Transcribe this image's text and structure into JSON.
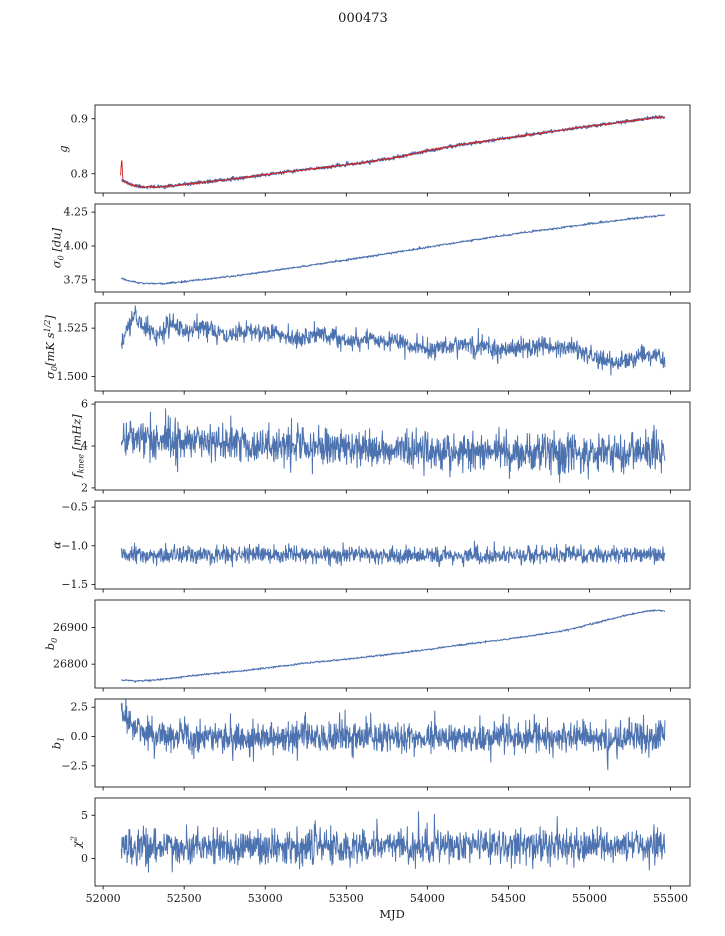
{
  "title": "000473",
  "chart_data": {
    "type": "line",
    "title": "000473",
    "xlabel": "MJD",
    "legend": "none",
    "grid": false,
    "xlim": [
      51950,
      55620
    ],
    "xticks": [
      52000,
      52500,
      53000,
      53500,
      54000,
      54500,
      55000,
      55500
    ],
    "xtick_labels": [
      "52000",
      "52500",
      "53000",
      "53500",
      "54000",
      "54500",
      "55000",
      "55500"
    ],
    "colors": {
      "data_line": "#4c72b0",
      "fit_line": "#cc2222",
      "axis": "#000000"
    },
    "panels": [
      {
        "id": "g",
        "ylabel": "g",
        "ylim": [
          0.765,
          0.925
        ],
        "yticks": [
          {
            "v": 0.8,
            "label": "0.8"
          },
          {
            "v": 0.9,
            "label": "0.9"
          }
        ],
        "series": [
          {
            "name": "g-data",
            "color": "#4c72b0",
            "width": 1.3,
            "n": 1300,
            "seed": 11,
            "noise": 0.0015,
            "trend": [
              [
                52112,
                0.7905
              ],
              [
                52160,
                0.7815
              ],
              [
                52230,
                0.7762
              ],
              [
                52330,
                0.7758
              ],
              [
                52450,
                0.7788
              ],
              [
                52600,
                0.7838
              ],
              [
                52800,
                0.7905
              ],
              [
                53000,
                0.7982
              ],
              [
                53200,
                0.8058
              ],
              [
                53400,
                0.8128
              ],
              [
                53600,
                0.82
              ],
              [
                53800,
                0.829
              ],
              [
                54000,
                0.8418
              ],
              [
                54200,
                0.8525
              ],
              [
                54400,
                0.8612
              ],
              [
                54600,
                0.8698
              ],
              [
                54800,
                0.8782
              ],
              [
                55000,
                0.8865
              ],
              [
                55150,
                0.8922
              ],
              [
                55300,
                0.8982
              ],
              [
                55420,
                0.9028
              ],
              [
                55465,
                0.9022
              ]
            ]
          },
          {
            "name": "g-fit",
            "color": "#cc2222",
            "width": 0.9,
            "n": 1300,
            "seed": 12,
            "noise": 0.0008,
            "trend": [
              [
                52108,
                0.796
              ],
              [
                52115,
                0.829
              ],
              [
                52122,
                0.7865
              ],
              [
                52160,
                0.7812
              ],
              [
                52230,
                0.7762
              ],
              [
                52330,
                0.7758
              ],
              [
                52450,
                0.7788
              ],
              [
                52600,
                0.7838
              ],
              [
                52800,
                0.7905
              ],
              [
                53000,
                0.7982
              ],
              [
                53200,
                0.8058
              ],
              [
                53400,
                0.8128
              ],
              [
                53600,
                0.82
              ],
              [
                53800,
                0.829
              ],
              [
                54000,
                0.8418
              ],
              [
                54200,
                0.8525
              ],
              [
                54400,
                0.8612
              ],
              [
                54600,
                0.8698
              ],
              [
                54800,
                0.8782
              ],
              [
                55000,
                0.8865
              ],
              [
                55150,
                0.8922
              ],
              [
                55300,
                0.8982
              ],
              [
                55420,
                0.9028
              ],
              [
                55465,
                0.9022
              ]
            ]
          }
        ]
      },
      {
        "id": "sigma0-du",
        "ylabel": "σ_{0} [du]",
        "ylim": [
          3.66,
          4.31
        ],
        "yticks": [
          {
            "v": 3.75,
            "label": "3.75"
          },
          {
            "v": 4.0,
            "label": "4.00"
          },
          {
            "v": 4.25,
            "label": "4.25"
          }
        ],
        "series": [
          {
            "name": "sigma0-du",
            "color": "#4c72b0",
            "width": 1.0,
            "n": 1300,
            "seed": 21,
            "noise": 0.0035,
            "trend": [
              [
                52112,
                3.763
              ],
              [
                52170,
                3.737
              ],
              [
                52260,
                3.723
              ],
              [
                52380,
                3.722
              ],
              [
                52500,
                3.737
              ],
              [
                52650,
                3.757
              ],
              [
                52850,
                3.785
              ],
              [
                53050,
                3.818
              ],
              [
                53250,
                3.852
              ],
              [
                53450,
                3.888
              ],
              [
                53650,
                3.925
              ],
              [
                53850,
                3.962
              ],
              [
                54050,
                4.0
              ],
              [
                54250,
                4.038
              ],
              [
                54450,
                4.073
              ],
              [
                54650,
                4.108
              ],
              [
                54850,
                4.14
              ],
              [
                55050,
                4.17
              ],
              [
                55250,
                4.2
              ],
              [
                55400,
                4.22
              ],
              [
                55465,
                4.228
              ]
            ]
          }
        ]
      },
      {
        "id": "sigma0-mks",
        "ylabel": "σ_{0}[mK s^{1/2}]",
        "ylim": [
          1.4925,
          1.538
        ],
        "yticks": [
          {
            "v": 1.5,
            "label": "1.500"
          },
          {
            "v": 1.525,
            "label": "1.525"
          }
        ],
        "series": [
          {
            "name": "sigma0-mks",
            "color": "#4c72b0",
            "width": 1.0,
            "n": 1400,
            "seed": 31,
            "noise": 0.0025,
            "trend": [
              [
                52112,
                1.515
              ],
              [
                52150,
                1.5255
              ],
              [
                52200,
                1.532
              ],
              [
                52260,
                1.525
              ],
              [
                52330,
                1.521
              ],
              [
                52420,
                1.5268
              ],
              [
                52520,
                1.523
              ],
              [
                52640,
                1.5262
              ],
              [
                52760,
                1.52
              ],
              [
                52900,
                1.5242
              ],
              [
                53050,
                1.5228
              ],
              [
                53200,
                1.5196
              ],
              [
                53350,
                1.5222
              ],
              [
                53500,
                1.518
              ],
              [
                53680,
                1.52
              ],
              [
                53850,
                1.517
              ],
              [
                54000,
                1.514
              ],
              [
                54180,
                1.5165
              ],
              [
                54350,
                1.5148
              ],
              [
                54520,
                1.5138
              ],
              [
                54700,
                1.5158
              ],
              [
                54880,
                1.5145
              ],
              [
                55020,
                1.5112
              ],
              [
                55140,
                1.5058
              ],
              [
                55250,
                1.5098
              ],
              [
                55360,
                1.5118
              ],
              [
                55465,
                1.5072
              ]
            ]
          }
        ]
      },
      {
        "id": "fknee",
        "ylabel": "f_{knee} [mHz]",
        "ylim": [
          1.9,
          6.1
        ],
        "yticks": [
          {
            "v": 2,
            "label": "2"
          },
          {
            "v": 4,
            "label": "4"
          },
          {
            "v": 6,
            "label": "6"
          }
        ],
        "series": [
          {
            "name": "fknee",
            "color": "#4c72b0",
            "width": 1.0,
            "n": 1400,
            "seed": 41,
            "noise": 0.45,
            "trend": [
              [
                52112,
                4.45
              ],
              [
                52350,
                4.32
              ],
              [
                52700,
                4.18
              ],
              [
                53100,
                4.02
              ],
              [
                53500,
                3.9
              ],
              [
                53900,
                3.82
              ],
              [
                54300,
                3.75
              ],
              [
                54700,
                3.68
              ],
              [
                55050,
                3.62
              ],
              [
                55300,
                3.68
              ],
              [
                55465,
                3.72
              ]
            ]
          }
        ]
      },
      {
        "id": "alpha",
        "ylabel": "α",
        "ylim": [
          -1.56,
          -0.42
        ],
        "yticks": [
          {
            "v": -0.5,
            "label": "−0.5"
          },
          {
            "v": -1.0,
            "label": "−1.0"
          },
          {
            "v": -1.5,
            "label": "−1.5"
          }
        ],
        "series": [
          {
            "name": "alpha",
            "color": "#4c72b0",
            "width": 1.0,
            "n": 1400,
            "seed": 51,
            "noise": 0.055,
            "trend": [
              [
                52112,
                -1.128
              ],
              [
                53200,
                -1.12
              ],
              [
                54200,
                -1.126
              ],
              [
                55465,
                -1.118
              ]
            ]
          }
        ]
      },
      {
        "id": "b0",
        "ylabel": "b_{0}",
        "ylim": [
          26735,
          26975
        ],
        "yticks": [
          {
            "v": 26800,
            "label": "26800"
          },
          {
            "v": 26900,
            "label": "26900"
          }
        ],
        "series": [
          {
            "name": "b0",
            "color": "#4c72b0",
            "width": 1.0,
            "n": 1300,
            "seed": 61,
            "noise": 1.2,
            "trend": [
              [
                52112,
                26757
              ],
              [
                52200,
                26754
              ],
              [
                52330,
                26757
              ],
              [
                52480,
                26765
              ],
              [
                52650,
                26773
              ],
              [
                52850,
                26781
              ],
              [
                53050,
                26792
              ],
              [
                53250,
                26803
              ],
              [
                53450,
                26811
              ],
              [
                53650,
                26821
              ],
              [
                53850,
                26831
              ],
              [
                54050,
                26843
              ],
              [
                54250,
                26855
              ],
              [
                54450,
                26866
              ],
              [
                54650,
                26878
              ],
              [
                54850,
                26892
              ],
              [
                55000,
                26908
              ],
              [
                55120,
                26922
              ],
              [
                55240,
                26935
              ],
              [
                55340,
                26943
              ],
              [
                55410,
                26947
              ],
              [
                55465,
                26944
              ]
            ]
          }
        ]
      },
      {
        "id": "b1",
        "ylabel": "b_{1}",
        "ylim": [
          -4.3,
          3.2
        ],
        "yticks": [
          {
            "v": -2.5,
            "label": "−2.5"
          },
          {
            "v": 0.0,
            "label": "0.0"
          },
          {
            "v": 2.5,
            "label": "2.5"
          }
        ],
        "series": [
          {
            "name": "b1",
            "color": "#4c72b0",
            "width": 1.0,
            "n": 1400,
            "seed": 71,
            "noise": 0.68,
            "trend": [
              [
                52112,
                2.55
              ],
              [
                52145,
                1.55
              ],
              [
                52190,
                0.75
              ],
              [
                52260,
                0.3
              ],
              [
                52380,
                0.05
              ],
              [
                52600,
                -0.05
              ],
              [
                55040,
                -0.05
              ],
              [
                55104,
                -0.05
              ],
              [
                55112,
                -3.3
              ],
              [
                55120,
                -0.05
              ],
              [
                55300,
                0.05
              ],
              [
                55465,
                0.0
              ]
            ]
          }
        ]
      },
      {
        "id": "chi2",
        "ylabel": "χ^{2}",
        "ylim": [
          -3.2,
          7.0
        ],
        "yticks": [
          {
            "v": 0,
            "label": "0"
          },
          {
            "v": 5,
            "label": "5"
          }
        ],
        "series": [
          {
            "name": "chi2",
            "color": "#4c72b0",
            "width": 1.0,
            "n": 1400,
            "seed": 81,
            "noise": 1.0,
            "trend": [
              [
                52112,
                1.35
              ],
              [
                53500,
                1.4
              ],
              [
                54800,
                1.55
              ],
              [
                55465,
                1.55
              ]
            ]
          }
        ]
      }
    ]
  }
}
